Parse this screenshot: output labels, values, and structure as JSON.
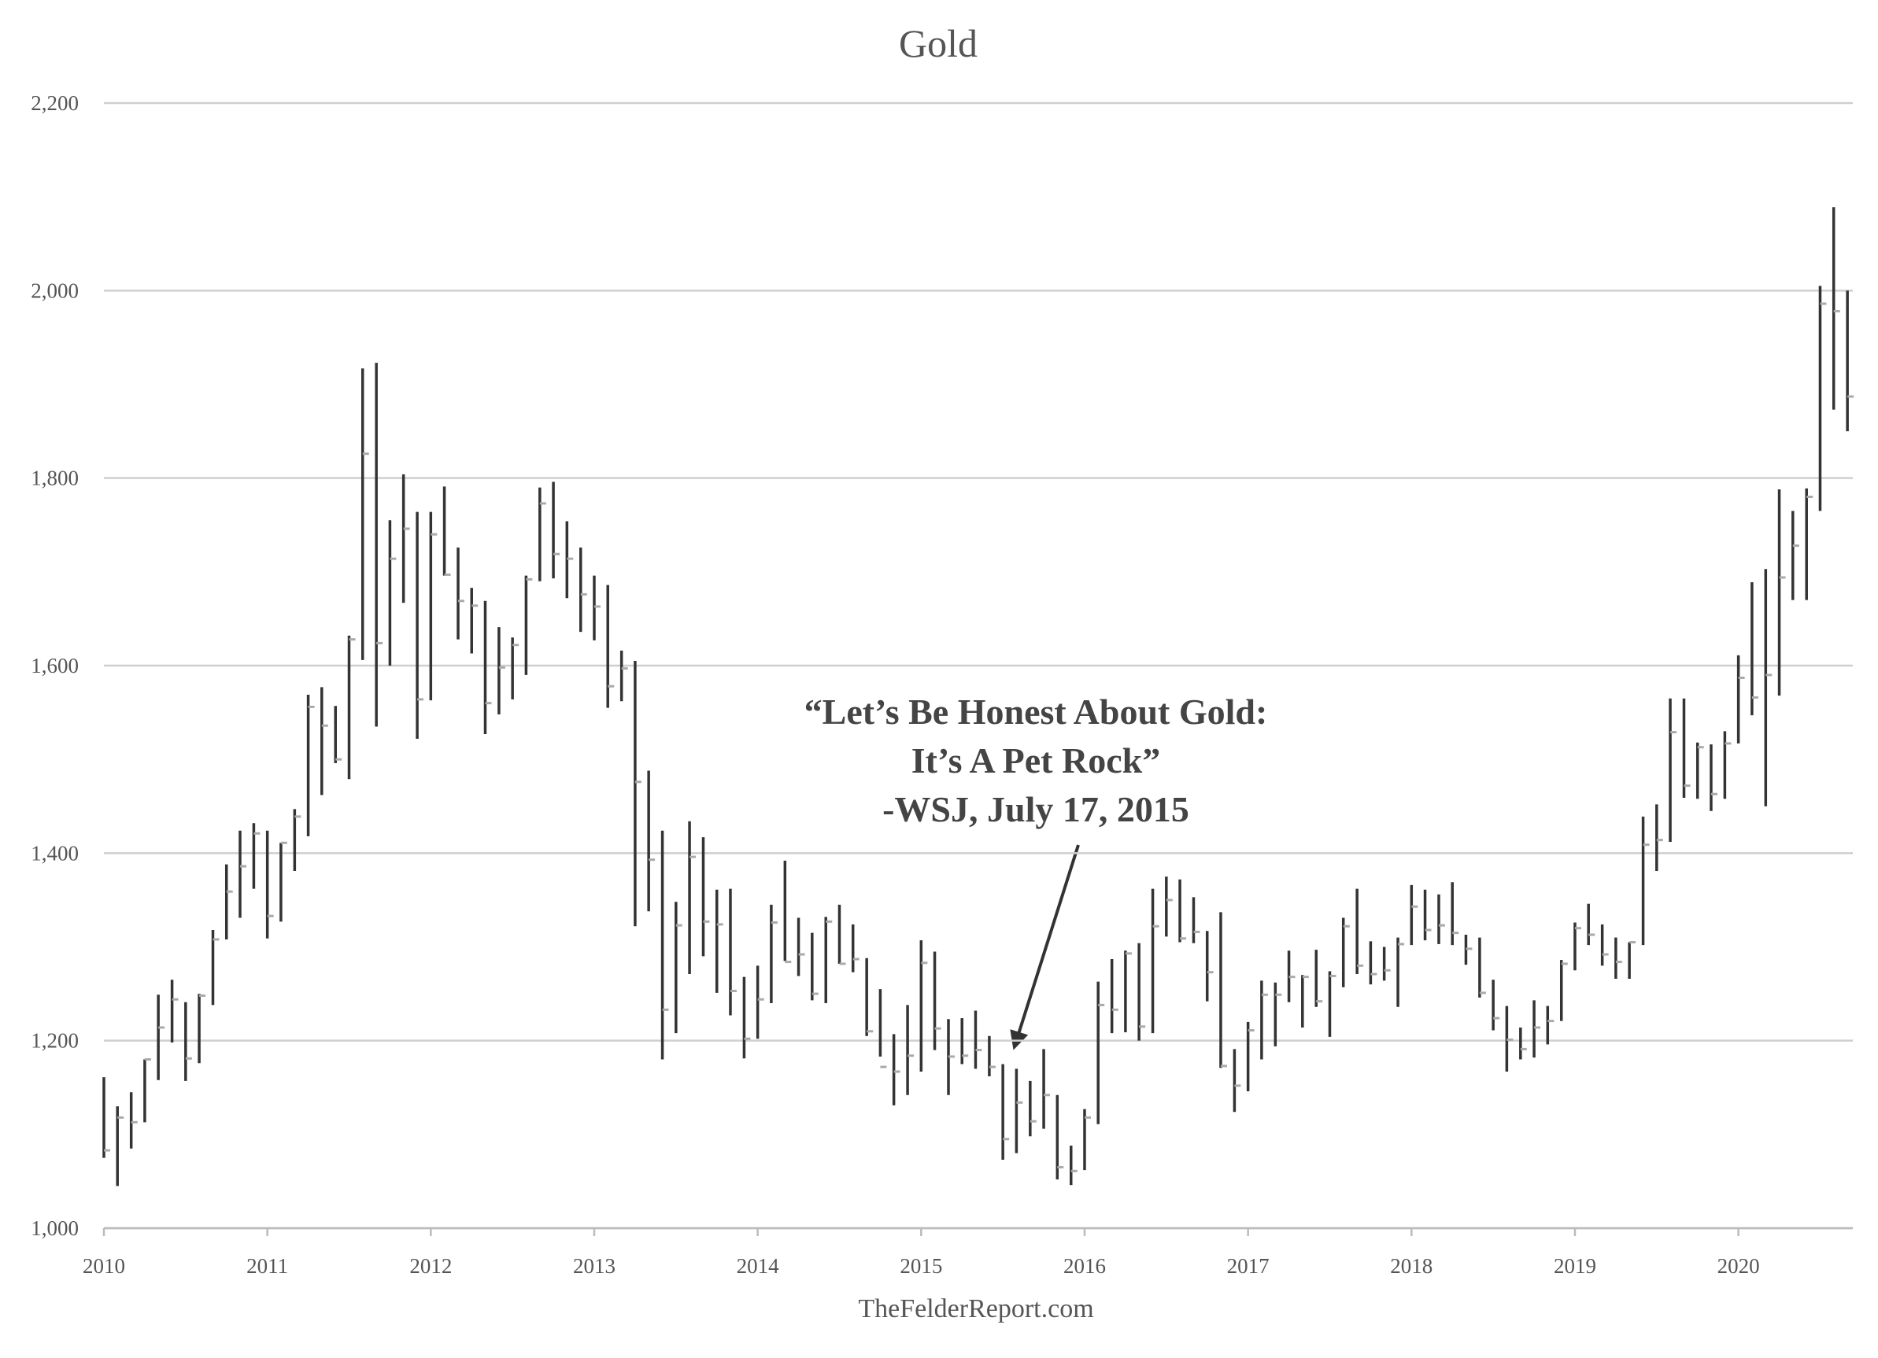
{
  "chart_data": {
    "type": "ohlc",
    "title": "Gold",
    "annotation": [
      "“Let’s Be Honest About Gold:",
      "It’s A Pet Rock”",
      "-WSJ, July 17, 2015"
    ],
    "source": "TheFelderReport.com",
    "xlim": [
      2010,
      2020.7
    ],
    "xticks": [
      2010,
      2011,
      2012,
      2013,
      2014,
      2015,
      2016,
      2017,
      2018,
      2019,
      2020
    ],
    "ylim": [
      1000,
      2200
    ],
    "yticks": [
      {
        "value": 1000,
        "label": "1,000"
      },
      {
        "value": 1200,
        "label": "1,200"
      },
      {
        "value": 1400,
        "label": "1,400"
      },
      {
        "value": 1600,
        "label": "1,600"
      },
      {
        "value": 1800,
        "label": "1,800"
      },
      {
        "value": 2000,
        "label": "2,000"
      },
      {
        "value": 2200,
        "label": "2,200"
      }
    ],
    "grid": true,
    "color": "#333333",
    "close_color": "#aaaaaa",
    "x": [
      2010,
      2010.083,
      2010.167,
      2010.25,
      2010.333,
      2010.417,
      2010.5,
      2010.583,
      2010.667,
      2010.75,
      2010.833,
      2010.917,
      2011,
      2011.083,
      2011.167,
      2011.25,
      2011.333,
      2011.417,
      2011.5,
      2011.583,
      2011.667,
      2011.75,
      2011.833,
      2011.917,
      2012,
      2012.083,
      2012.167,
      2012.25,
      2012.333,
      2012.417,
      2012.5,
      2012.583,
      2012.667,
      2012.75,
      2012.833,
      2012.917,
      2013,
      2013.083,
      2013.167,
      2013.25,
      2013.333,
      2013.417,
      2013.5,
      2013.583,
      2013.667,
      2013.75,
      2013.833,
      2013.917,
      2014,
      2014.083,
      2014.167,
      2014.25,
      2014.333,
      2014.417,
      2014.5,
      2014.583,
      2014.667,
      2014.75,
      2014.833,
      2014.917,
      2015,
      2015.083,
      2015.167,
      2015.25,
      2015.333,
      2015.417,
      2015.5,
      2015.583,
      2015.667,
      2015.75,
      2015.833,
      2015.917,
      2016,
      2016.083,
      2016.167,
      2016.25,
      2016.333,
      2016.417,
      2016.5,
      2016.583,
      2016.667,
      2016.75,
      2016.833,
      2016.917,
      2017,
      2017.083,
      2017.167,
      2017.25,
      2017.333,
      2017.417,
      2017.5,
      2017.583,
      2017.667,
      2017.75,
      2017.833,
      2017.917,
      2018,
      2018.083,
      2018.167,
      2018.25,
      2018.333,
      2018.417,
      2018.5,
      2018.583,
      2018.667,
      2018.75,
      2018.833,
      2018.917,
      2019,
      2019.083,
      2019.167,
      2019.25,
      2019.333,
      2019.417,
      2019.5,
      2019.583,
      2019.667,
      2019.75,
      2019.833,
      2019.917,
      2020,
      2020.083,
      2020.167,
      2020.25,
      2020.333,
      2020.417,
      2020.5,
      2020.583,
      2020.667
    ],
    "high": [
      1161,
      1130,
      1145,
      1180,
      1249,
      1265,
      1241,
      1250,
      1318,
      1388,
      1424,
      1432,
      1424,
      1411,
      1447,
      1569,
      1577,
      1557,
      1632,
      1917,
      1923,
      1755,
      1804,
      1764,
      1764,
      1791,
      1726,
      1683,
      1669,
      1641,
      1630,
      1696,
      1790,
      1796,
      1754,
      1726,
      1696,
      1686,
      1616,
      1605,
      1488,
      1424,
      1348,
      1434,
      1417,
      1361,
      1362,
      1268,
      1280,
      1345,
      1392,
      1331,
      1315,
      1332,
      1345,
      1324,
      1288,
      1255,
      1207,
      1238,
      1307,
      1295,
      1223,
      1224,
      1232,
      1205,
      1175,
      1170,
      1157,
      1191,
      1142,
      1088,
      1127,
      1263,
      1287,
      1296,
      1304,
      1362,
      1375,
      1372,
      1353,
      1317,
      1337,
      1191,
      1220,
      1264,
      1262,
      1296,
      1270,
      1297,
      1274,
      1331,
      1362,
      1306,
      1300,
      1310,
      1366,
      1361,
      1356,
      1369,
      1313,
      1310,
      1265,
      1237,
      1214,
      1243,
      1237,
      1286,
      1326,
      1346,
      1324,
      1310,
      1305,
      1439,
      1452,
      1565,
      1565,
      1518,
      1516,
      1530,
      1611,
      1689,
      1703,
      1788,
      1765,
      1789,
      2005,
      2089,
      2000
    ],
    "low": [
      1075,
      1045,
      1085,
      1113,
      1158,
      1198,
      1157,
      1176,
      1238,
      1308,
      1331,
      1362,
      1309,
      1327,
      1381,
      1418,
      1462,
      1496,
      1479,
      1606,
      1535,
      1600,
      1667,
      1522,
      1563,
      1696,
      1628,
      1613,
      1527,
      1548,
      1564,
      1590,
      1690,
      1693,
      1672,
      1636,
      1627,
      1555,
      1562,
      1322,
      1338,
      1180,
      1208,
      1271,
      1290,
      1251,
      1227,
      1181,
      1202,
      1240,
      1285,
      1269,
      1243,
      1240,
      1282,
      1273,
      1205,
      1183,
      1131,
      1142,
      1167,
      1190,
      1142,
      1175,
      1170,
      1162,
      1073,
      1080,
      1098,
      1106,
      1052,
      1046,
      1062,
      1111,
      1208,
      1209,
      1200,
      1208,
      1311,
      1305,
      1304,
      1242,
      1171,
      1124,
      1146,
      1180,
      1194,
      1241,
      1214,
      1236,
      1204,
      1257,
      1271,
      1260,
      1264,
      1236,
      1302,
      1307,
      1303,
      1302,
      1281,
      1246,
      1211,
      1167,
      1180,
      1182,
      1196,
      1221,
      1275,
      1302,
      1280,
      1266,
      1266,
      1302,
      1381,
      1412,
      1459,
      1458,
      1445,
      1458,
      1517,
      1547,
      1450,
      1568,
      1670,
      1670,
      1765,
      1873,
      1850
    ],
    "close": [
      1083,
      1118,
      1113,
      1180,
      1214,
      1244,
      1181,
      1248,
      1308,
      1359,
      1386,
      1421,
      1333,
      1411,
      1439,
      1556,
      1536,
      1500,
      1628,
      1826,
      1624,
      1714,
      1746,
      1564,
      1740,
      1697,
      1669,
      1664,
      1560,
      1598,
      1622,
      1692,
      1773,
      1719,
      1714,
      1676,
      1663,
      1578,
      1597,
      1476,
      1393,
      1233,
      1323,
      1396,
      1327,
      1324,
      1253,
      1202,
      1244,
      1326,
      1284,
      1292,
      1250,
      1327,
      1282,
      1287,
      1210,
      1172,
      1167,
      1184,
      1283,
      1213,
      1183,
      1184,
      1190,
      1172,
      1095,
      1134,
      1114,
      1142,
      1065,
      1061,
      1118,
      1238,
      1233,
      1293,
      1215,
      1322,
      1350,
      1309,
      1316,
      1273,
      1173,
      1152,
      1211,
      1249,
      1249,
      1268,
      1268,
      1242,
      1269,
      1322,
      1280,
      1271,
      1275,
      1303,
      1343,
      1318,
      1323,
      1315,
      1298,
      1251,
      1224,
      1201,
      1191,
      1214,
      1221,
      1282,
      1320,
      1313,
      1292,
      1284,
      1305,
      1409,
      1414,
      1529,
      1472,
      1513,
      1463,
      1517,
      1587,
      1566,
      1590,
      1694,
      1728,
      1780,
      1986,
      1978,
      1887
    ]
  }
}
